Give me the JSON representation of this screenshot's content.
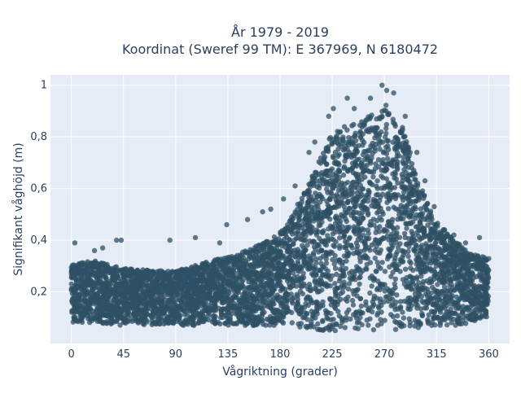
{
  "chart_data": {
    "type": "scatter",
    "title_line1": "År 1979 - 2019",
    "title_line2": "Koordinat (Sweref 99 TM): E 367969, N 6180472",
    "xlabel": "Vågriktning (grader)",
    "ylabel": "Signifikant våghöjd (m)",
    "xlim": [
      -18,
      378
    ],
    "ylim": [
      0.0,
      1.04
    ],
    "x_ticks": [
      0,
      45,
      90,
      135,
      180,
      225,
      270,
      315,
      360
    ],
    "x_tick_labels": [
      "0",
      "45",
      "90",
      "135",
      "180",
      "225",
      "270",
      "315",
      "360"
    ],
    "y_ticks": [
      0.2,
      0.4,
      0.6,
      0.8,
      1.0
    ],
    "y_tick_labels": [
      "0,2",
      "0,4",
      "0,6",
      "0,8",
      "1"
    ],
    "grid": true,
    "marker_color": "#2f5064",
    "plot_bg": "#e5ecf6",
    "envelope": {
      "direction": [
        0,
        20,
        45,
        90,
        120,
        150,
        170,
        185,
        200,
        215,
        225,
        240,
        255,
        270,
        285,
        300,
        315,
        330,
        345,
        360
      ],
      "height_min": [
        0.08,
        0.08,
        0.07,
        0.07,
        0.07,
        0.07,
        0.07,
        0.07,
        0.06,
        0.05,
        0.05,
        0.05,
        0.05,
        0.05,
        0.05,
        0.06,
        0.07,
        0.07,
        0.08,
        0.09
      ],
      "height_max": [
        0.31,
        0.32,
        0.29,
        0.28,
        0.32,
        0.36,
        0.4,
        0.45,
        0.58,
        0.72,
        0.82,
        0.85,
        0.88,
        0.93,
        0.86,
        0.62,
        0.47,
        0.4,
        0.35,
        0.33
      ]
    },
    "outliers": [
      {
        "x": 3,
        "y": 0.39
      },
      {
        "x": 20,
        "y": 0.36
      },
      {
        "x": 27,
        "y": 0.37
      },
      {
        "x": 39,
        "y": 0.4
      },
      {
        "x": 43,
        "y": 0.4
      },
      {
        "x": 85,
        "y": 0.4
      },
      {
        "x": 107,
        "y": 0.41
      },
      {
        "x": 128,
        "y": 0.39
      },
      {
        "x": 134,
        "y": 0.46
      },
      {
        "x": 152,
        "y": 0.48
      },
      {
        "x": 165,
        "y": 0.51
      },
      {
        "x": 172,
        "y": 0.52
      },
      {
        "x": 183,
        "y": 0.56
      },
      {
        "x": 193,
        "y": 0.61
      },
      {
        "x": 205,
        "y": 0.74
      },
      {
        "x": 210,
        "y": 0.78
      },
      {
        "x": 222,
        "y": 0.88
      },
      {
        "x": 226,
        "y": 0.91
      },
      {
        "x": 238,
        "y": 0.95
      },
      {
        "x": 244,
        "y": 0.91
      },
      {
        "x": 258,
        "y": 0.95
      },
      {
        "x": 268,
        "y": 1.0
      },
      {
        "x": 272,
        "y": 0.98
      },
      {
        "x": 278,
        "y": 0.97
      },
      {
        "x": 288,
        "y": 0.88
      },
      {
        "x": 298,
        "y": 0.74
      },
      {
        "x": 305,
        "y": 0.63
      },
      {
        "x": 313,
        "y": 0.53
      },
      {
        "x": 322,
        "y": 0.44
      },
      {
        "x": 330,
        "y": 0.42
      },
      {
        "x": 340,
        "y": 0.39
      },
      {
        "x": 352,
        "y": 0.41
      }
    ]
  }
}
